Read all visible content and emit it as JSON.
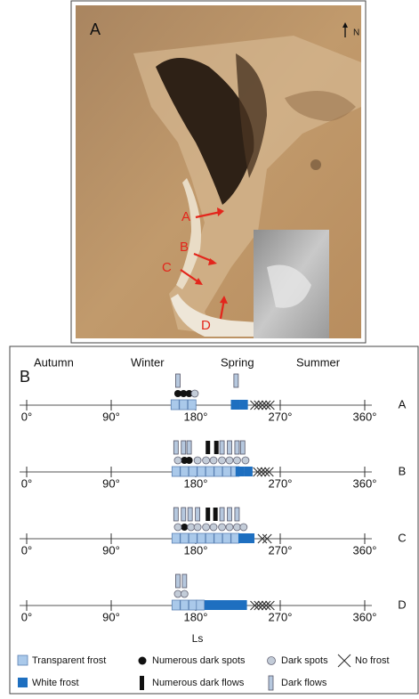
{
  "panel_a": {
    "label": "A",
    "north": "N",
    "arrows": [
      "A",
      "B",
      "C",
      "D"
    ]
  },
  "panel_b": {
    "label": "B",
    "seasons": [
      "Autumn",
      "Winter",
      "Spring",
      "Summer"
    ],
    "xlim": [
      0,
      360
    ],
    "xticks": [
      {
        "value": 0,
        "label": "0°"
      },
      {
        "value": 90,
        "label": "90°"
      },
      {
        "value": 180,
        "label": "180°"
      },
      {
        "value": 270,
        "label": "270°"
      },
      {
        "value": 360,
        "label": "360°"
      }
    ],
    "xlabel": "Ls",
    "rows": [
      {
        "name": "A",
        "transparent_frost": [
          158,
          167,
          176
        ],
        "white_frost": [
          222,
          231
        ],
        "no_frost": [
          243,
          247,
          251,
          255,
          259
        ],
        "dark_flows": [
          161,
          223
        ],
        "numerous_dark_flows": [],
        "numerous_dark_spots": [
          161,
          167,
          173
        ],
        "dark_spots": [
          179
        ]
      },
      {
        "name": "B",
        "transparent_frost": [
          159,
          168,
          177,
          186,
          195,
          204,
          213,
          222
        ],
        "white_frost": [
          227,
          236
        ],
        "no_frost": [
          246,
          250,
          254,
          258
        ],
        "dark_flows": [
          159,
          167,
          173,
          208,
          216,
          224,
          230
        ],
        "numerous_dark_flows": [
          193,
          202
        ],
        "numerous_dark_spots": [
          168,
          173
        ],
        "dark_spots": [
          161,
          182,
          191,
          199,
          208,
          216,
          224,
          233
        ]
      },
      {
        "name": "C",
        "transparent_frost": [
          159,
          168,
          177,
          186,
          195,
          204,
          213,
          222
        ],
        "white_frost": [
          230,
          238
        ],
        "no_frost": [
          251,
          256
        ],
        "dark_flows": [
          159,
          167,
          174,
          182,
          208,
          216,
          224
        ],
        "numerous_dark_flows": [
          193,
          201
        ],
        "numerous_dark_spots": [
          168
        ],
        "dark_spots": [
          161,
          175,
          182,
          191,
          199,
          208,
          216,
          224,
          231
        ]
      },
      {
        "name": "D",
        "transparent_frost": [
          159,
          168,
          177,
          185
        ],
        "white_frost": [
          194,
          203,
          212,
          221,
          230
        ],
        "no_frost": [
          243,
          247,
          251,
          255,
          259
        ],
        "dark_flows": [
          161,
          168
        ],
        "numerous_dark_flows": [],
        "numerous_dark_spots": [],
        "dark_spots": [
          161,
          168
        ]
      }
    ],
    "legend": {
      "transparent_frost": "Transparent frost",
      "numerous_dark_spots": "Numerous dark spots",
      "dark_spots": "Dark spots",
      "no_frost": "No frost",
      "white_frost": "White frost",
      "numerous_dark_flows": "Numerous dark flows",
      "dark_flows": "Dark flows"
    }
  }
}
